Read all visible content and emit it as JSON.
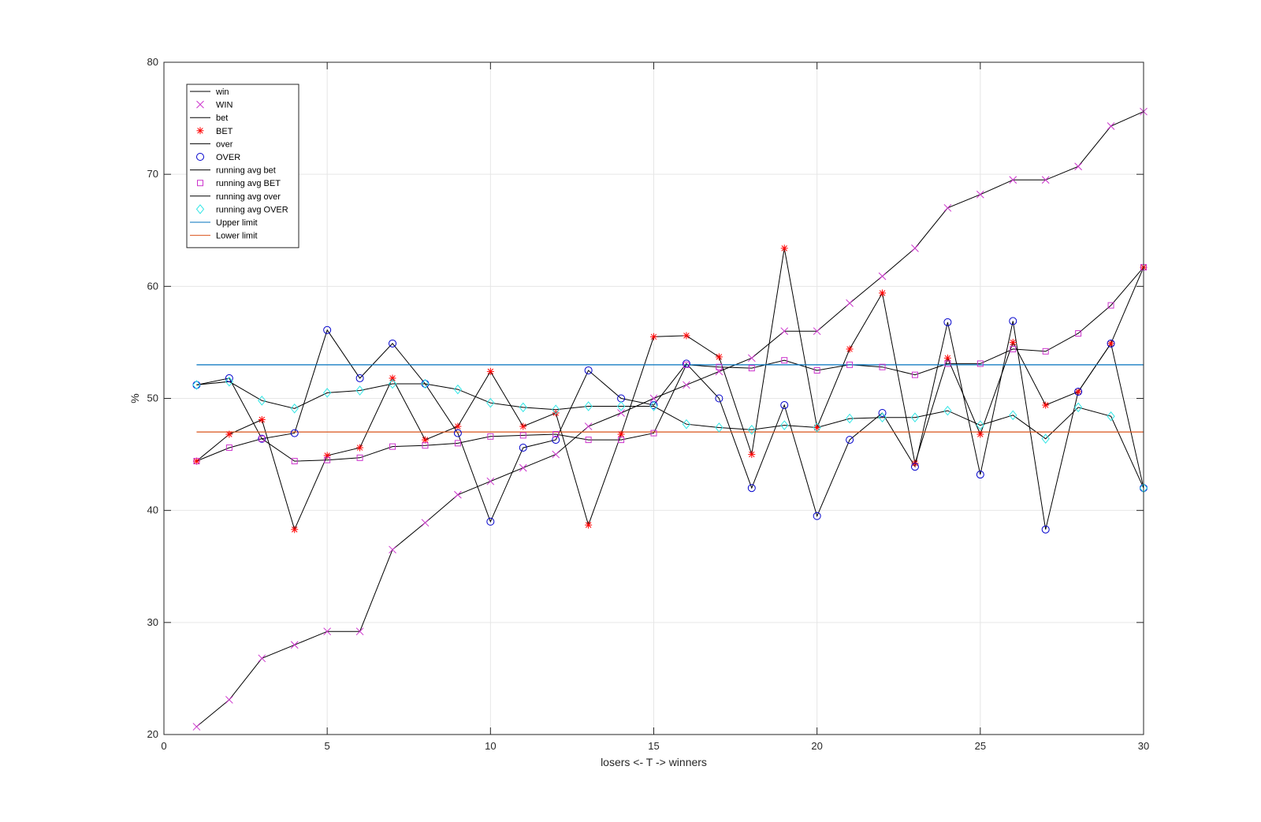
{
  "chart_data": {
    "type": "line",
    "title": "",
    "xlabel": "losers <- T -> winners",
    "ylabel": "%",
    "xlim": [
      0,
      30
    ],
    "ylim": [
      20,
      80
    ],
    "xticks": [
      0,
      5,
      10,
      15,
      20,
      25,
      30
    ],
    "yticks": [
      20,
      30,
      40,
      50,
      60,
      70,
      80
    ],
    "grid": true,
    "legend_position": "top-left",
    "x": [
      1,
      2,
      3,
      4,
      5,
      6,
      7,
      8,
      9,
      10,
      11,
      12,
      13,
      14,
      15,
      16,
      17,
      18,
      19,
      20,
      21,
      22,
      23,
      24,
      25,
      26,
      27,
      28,
      29,
      30
    ],
    "series": [
      {
        "name": "win",
        "role": "line",
        "color": "#000000",
        "values": [
          20.7,
          23.1,
          26.8,
          28.0,
          29.2,
          29.2,
          36.5,
          38.9,
          41.4,
          42.6,
          43.8,
          45.0,
          47.5,
          48.7,
          50.0,
          51.2,
          52.4,
          53.6,
          56.0,
          56.0,
          58.5,
          60.9,
          63.4,
          67.0,
          68.2,
          69.5,
          69.5,
          70.7,
          74.3,
          75.6
        ]
      },
      {
        "name": "WIN",
        "role": "marker",
        "marker": "x",
        "color": "#cc33cc",
        "values": [
          20.7,
          23.1,
          26.8,
          28.0,
          29.2,
          29.2,
          36.5,
          38.9,
          41.4,
          42.6,
          43.8,
          45.0,
          47.5,
          48.7,
          50.0,
          51.2,
          52.4,
          53.6,
          56.0,
          56.0,
          58.5,
          60.9,
          63.4,
          67.0,
          68.2,
          69.5,
          69.5,
          70.7,
          74.3,
          75.6
        ]
      },
      {
        "name": "bet",
        "role": "line",
        "color": "#000000",
        "values": [
          44.4,
          46.8,
          48.1,
          38.3,
          44.9,
          45.6,
          51.8,
          46.3,
          47.5,
          52.4,
          47.5,
          48.7,
          38.7,
          46.8,
          55.5,
          55.6,
          53.7,
          45.0,
          63.4,
          47.4,
          54.4,
          59.4,
          44.2,
          53.6,
          46.8,
          55.0,
          49.4,
          50.6,
          54.9,
          61.7
        ]
      },
      {
        "name": "BET",
        "role": "marker",
        "marker": "asterisk",
        "color": "#ff0000",
        "values": [
          44.4,
          46.8,
          48.1,
          38.3,
          44.9,
          45.6,
          51.8,
          46.3,
          47.5,
          52.4,
          47.5,
          48.7,
          38.7,
          46.8,
          55.5,
          55.6,
          53.7,
          45.0,
          63.4,
          47.4,
          54.4,
          59.4,
          44.2,
          53.6,
          46.8,
          55.0,
          49.4,
          50.6,
          54.9,
          61.7
        ]
      },
      {
        "name": "over",
        "role": "line",
        "color": "#000000",
        "values": [
          51.2,
          51.8,
          46.4,
          46.9,
          56.1,
          51.8,
          54.9,
          51.3,
          46.9,
          39.0,
          45.6,
          46.3,
          52.5,
          50.0,
          49.4,
          53.1,
          50.0,
          42.0,
          49.4,
          39.5,
          46.3,
          48.7,
          43.9,
          56.8,
          43.2,
          56.9,
          38.3,
          50.6,
          54.9,
          42.0
        ]
      },
      {
        "name": "OVER",
        "role": "marker",
        "marker": "circle",
        "color": "#0000cc",
        "values": [
          51.2,
          51.8,
          46.4,
          46.9,
          56.1,
          51.8,
          54.9,
          51.3,
          46.9,
          39.0,
          45.6,
          46.3,
          52.5,
          50.0,
          49.4,
          53.1,
          50.0,
          42.0,
          49.4,
          39.5,
          46.3,
          48.7,
          43.9,
          56.8,
          43.2,
          56.9,
          38.3,
          50.6,
          54.9,
          42.0
        ]
      },
      {
        "name": "running avg bet",
        "role": "line",
        "color": "#000000",
        "values": [
          44.4,
          45.6,
          46.4,
          44.4,
          44.5,
          44.7,
          45.7,
          45.8,
          46.0,
          46.6,
          46.7,
          46.8,
          46.3,
          46.3,
          46.9,
          53.0,
          52.8,
          52.7,
          53.4,
          52.5,
          53.0,
          52.8,
          52.1,
          53.1,
          53.1,
          54.4,
          54.2,
          55.8,
          58.3,
          61.7
        ]
      },
      {
        "name": "running avg BET",
        "role": "marker",
        "marker": "square",
        "color": "#cc33cc",
        "values": [
          44.4,
          45.6,
          46.4,
          44.4,
          44.5,
          44.7,
          45.7,
          45.8,
          46.0,
          46.6,
          46.7,
          46.8,
          46.3,
          46.3,
          46.9,
          53.0,
          52.8,
          52.7,
          53.4,
          52.5,
          53.0,
          52.8,
          52.1,
          53.1,
          53.1,
          54.4,
          54.2,
          55.8,
          58.3,
          61.7
        ]
      },
      {
        "name": "running avg over",
        "role": "line",
        "color": "#000000",
        "values": [
          51.2,
          51.5,
          49.8,
          49.1,
          50.5,
          50.7,
          51.3,
          51.3,
          50.8,
          49.6,
          49.2,
          49.0,
          49.3,
          49.3,
          49.3,
          47.7,
          47.4,
          47.2,
          47.6,
          47.4,
          48.2,
          48.3,
          48.3,
          48.9,
          47.6,
          48.5,
          46.4,
          49.2,
          48.4,
          42.0
        ]
      },
      {
        "name": "running avg OVER",
        "role": "marker",
        "marker": "diamond",
        "color": "#33e6e6",
        "values": [
          51.2,
          51.5,
          49.8,
          49.1,
          50.5,
          50.7,
          51.3,
          51.3,
          50.8,
          49.6,
          49.2,
          49.0,
          49.3,
          49.3,
          49.3,
          47.7,
          47.4,
          47.2,
          47.6,
          47.4,
          48.2,
          48.3,
          48.3,
          48.9,
          47.6,
          48.5,
          46.4,
          49.2,
          48.4,
          42.0
        ]
      },
      {
        "name": "Upper limit",
        "role": "line",
        "color": "#0072bd",
        "x_range": [
          1,
          30
        ],
        "value": 53.0
      },
      {
        "name": "Lower limit",
        "role": "line",
        "color": "#d95319",
        "x_range": [
          1,
          30
        ],
        "value": 47.0
      }
    ]
  }
}
